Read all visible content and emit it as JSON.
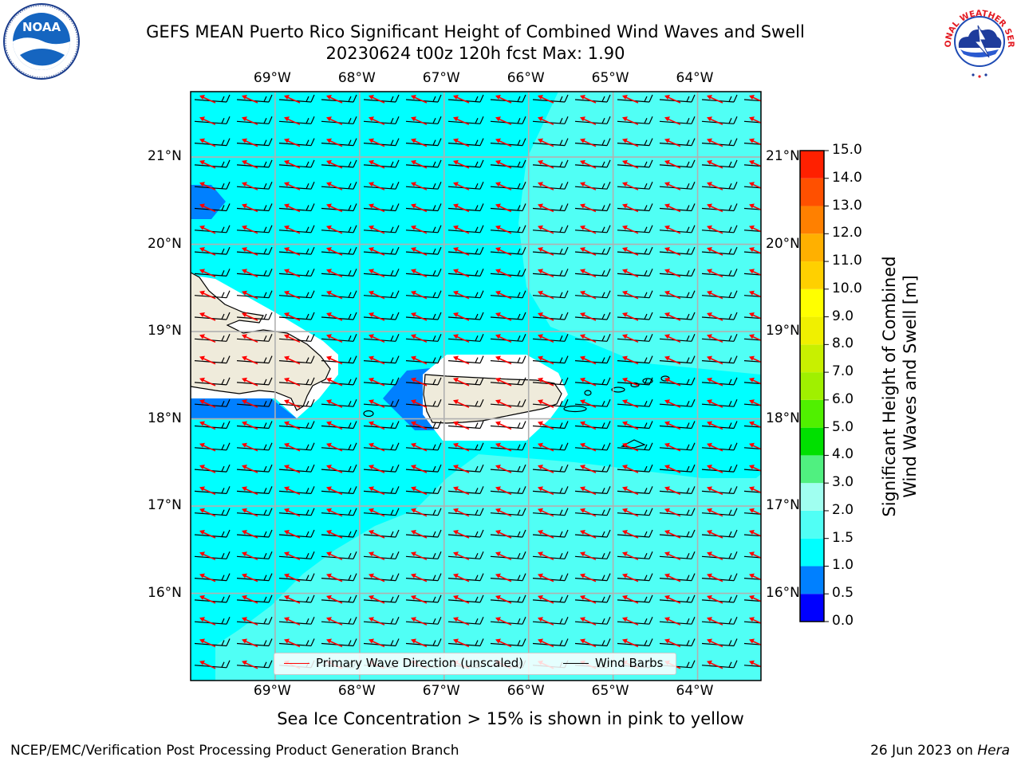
{
  "title": {
    "line1": "GEFS MEAN Puerto Rico Significant Height of Combined Wind Waves and Swell",
    "line2": "20230624 t00z 120h fcst   Max: 1.90"
  },
  "map": {
    "region": "Puerto Rico",
    "lon_range": [
      -70.0,
      -63.25
    ],
    "lat_range": [
      15.0,
      21.75
    ],
    "top_lon_labels": [
      "69°W",
      "68°W",
      "67°W",
      "66°W",
      "65°W",
      "64°W"
    ],
    "bottom_lon_labels": [
      "69°W",
      "68°W",
      "67°W",
      "66°W",
      "65°W",
      "64°W"
    ],
    "left_lat_labels": [
      "21°N",
      "20°N",
      "19°N",
      "18°N",
      "17°N",
      "16°N"
    ],
    "right_lat_labels": [
      "21°N",
      "20°N",
      "19°N",
      "18°N",
      "17°N",
      "16°N"
    ],
    "colors": {
      "ocean_1_1_5": "#00ffff",
      "ocean_1_5_2": "#50fff5",
      "ocean_0_5_1": "#0080ff",
      "land": "#efebdb",
      "grid": "#b0b0b0",
      "wave_arrow": "#ff0000",
      "wind_barb": "#000000"
    }
  },
  "colorbar": {
    "label_line1": "Significant Height of Combined",
    "label_line2": "Wind Waves and Swell [m]",
    "ticks": [
      "0.0",
      "0.5",
      "1.0",
      "1.5",
      "2.0",
      "3.0",
      "4.0",
      "5.0",
      "6.0",
      "7.0",
      "8.0",
      "9.0",
      "10.0",
      "11.0",
      "12.0",
      "13.0",
      "14.0",
      "15.0"
    ],
    "colors": [
      "#0000ff",
      "#0080ff",
      "#00ffff",
      "#50fff5",
      "#a0fff0",
      "#50f080",
      "#00e000",
      "#50f000",
      "#a0f000",
      "#c8f000",
      "#f0f000",
      "#ffff00",
      "#ffd000",
      "#ffb000",
      "#ff8000",
      "#ff5000",
      "#ff2000",
      "#ff0000"
    ]
  },
  "legend": {
    "wave_label": "Primary Wave Direction (unscaled)",
    "barb_label": "Wind Barbs"
  },
  "note": "Sea Ice Concentration > 15% is shown in pink to yellow",
  "footer": {
    "left": "NCEP/EMC/Verification Post Processing Product Generation Branch",
    "right_prefix": "26 Jun 2023 on ",
    "right_machine": "Hera"
  },
  "logos": {
    "left": {
      "text": "NOAA",
      "icon": "noaa-logo"
    },
    "right": {
      "ring_text": "NATIONAL WEATHER SERVICE",
      "icon": "nws-logo"
    }
  }
}
